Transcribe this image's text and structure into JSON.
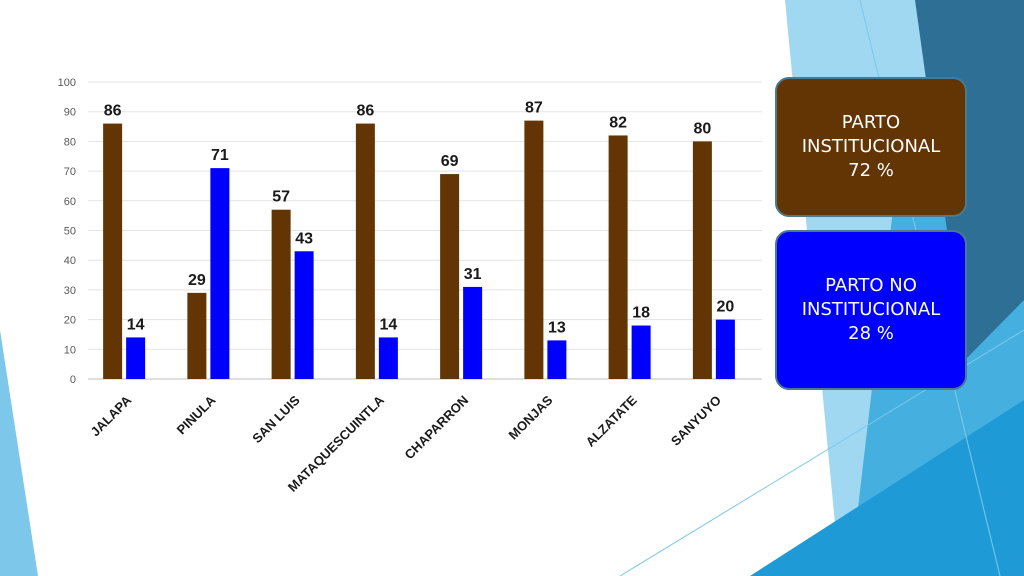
{
  "chart_data": {
    "type": "bar",
    "categories": [
      "JALAPA",
      "PINULA",
      "SAN LUIS",
      "MATAQUESCUINTLA",
      "CHAPARRON",
      "MONJAS",
      "ALZATATE",
      "SANYUYO"
    ],
    "series": [
      {
        "values": [
          86,
          29,
          57,
          86,
          69,
          87,
          82,
          80
        ],
        "color": "#633504"
      },
      {
        "values": [
          14,
          71,
          43,
          14,
          31,
          13,
          18,
          20
        ],
        "color": "#0000ff"
      }
    ],
    "yticks": [
      "0",
      "10",
      "20",
      "30",
      "40",
      "50",
      "60",
      "70",
      "80",
      "90",
      "100"
    ],
    "ylim": [
      0,
      100
    ],
    "grid": true,
    "xlabel": "",
    "ylabel": ""
  },
  "summary": {
    "institutional": {
      "line1": "PARTO",
      "line2": "INSTITUCIONAL",
      "line3": "72 %",
      "color": "#633504"
    },
    "non_institutional": {
      "line1": "PARTO NO",
      "line2": "INSTITUCIONAL",
      "line3": "28 %",
      "color": "#0000ff"
    }
  },
  "theme": {
    "accent_light": "#7dc8ea",
    "accent_mid": "#2aa7dc",
    "accent_dark": "#2d6f95"
  }
}
